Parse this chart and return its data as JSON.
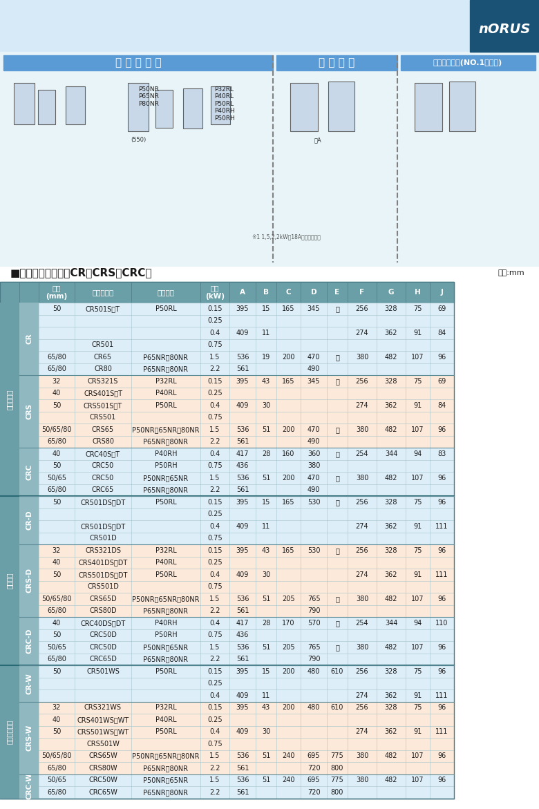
{
  "title_section": "■自動接続寸法表（CR・CRS・CRC）",
  "unit_text": "単位:mm",
  "header_row": [
    "",
    "口径\n(mm)",
    "ポンプ型式",
    "接続型式",
    "出力\n(kW)",
    "A",
    "B",
    "C",
    "D",
    "E",
    "F",
    "G",
    "H",
    "J"
  ],
  "norus_text": "nORUS",
  "bg_header_color": "#6b9fa8",
  "bg_light_blue": "#dceef5",
  "bg_light_orange": "#fde9d9",
  "bg_white": "#ffffff",
  "bg_section_header": "#8fb8c0",
  "table_data": [
    [
      "非自動運転",
      "CR",
      "50",
      "CR501S／T",
      "P50RL",
      "0.15",
      "395",
      "15",
      "165",
      "345",
      "－",
      "256",
      "328",
      "75",
      "69"
    ],
    [
      "非自動運転",
      "CR",
      "50",
      "CR501S／T",
      "P50RL",
      "0.25",
      "",
      "15",
      "165",
      "345",
      "－",
      "",
      "",
      "",
      ""
    ],
    [
      "非自動運転",
      "CR",
      "50",
      "CR501S／T",
      "P50RL",
      "0.4",
      "409",
      "11",
      "165",
      "345",
      "－",
      "274",
      "362",
      "91",
      "84"
    ],
    [
      "非自動運転",
      "CR",
      "50",
      "CR501",
      "",
      "0.75",
      "",
      "11",
      "165",
      "345",
      "－",
      "",
      "",
      "",
      ""
    ],
    [
      "非自動運転",
      "CR",
      "65/80",
      "CR65",
      "P65NR／80NR",
      "1.5",
      "536",
      "19",
      "200",
      "470",
      "－",
      "380",
      "482",
      "107",
      "96"
    ],
    [
      "非自動運転",
      "CR",
      "65/80",
      "CR80",
      "P65NR／80NR",
      "2.2",
      "561",
      "19",
      "200",
      "490",
      "－",
      "380",
      "482",
      "107",
      "96"
    ],
    [
      "非自動運転",
      "CRS",
      "32",
      "CRS321S",
      "P32RL",
      "0.15",
      "395",
      "43",
      "165",
      "345",
      "－",
      "256",
      "328",
      "75",
      "69"
    ],
    [
      "非自動運転",
      "CRS",
      "40",
      "CRS401S／T",
      "P40RL",
      "0.25",
      "",
      "43",
      "165",
      "345",
      "－",
      "",
      "",
      "",
      ""
    ],
    [
      "非自動運転",
      "CRS",
      "50",
      "CRS501S／T",
      "P50RL",
      "0.4",
      "409",
      "30",
      "165",
      "345",
      "－",
      "274",
      "362",
      "91",
      "84"
    ],
    [
      "非自動運転",
      "CRS",
      "50",
      "CRS501",
      "",
      "0.75",
      "",
      "30",
      "165",
      "345",
      "－",
      "",
      "",
      "",
      ""
    ],
    [
      "非自動運転",
      "CRS",
      "50/65/80",
      "CRS65",
      "P50NR／65NR／80NR",
      "1.5",
      "536",
      "51",
      "200",
      "470",
      "－",
      "380",
      "482",
      "107",
      "96"
    ],
    [
      "非自動運転",
      "CRS",
      "65/80",
      "CRS80",
      "P65NR／80NR",
      "2.2",
      "561",
      "51",
      "200",
      "490",
      "－",
      "380",
      "482",
      "107",
      "96"
    ],
    [
      "非自動運転",
      "CRC",
      "40",
      "CRC40S／T",
      "P40RH",
      "0.4",
      "417",
      "28",
      "160",
      "360",
      "－",
      "254",
      "344",
      "94",
      "83"
    ],
    [
      "非自動運転",
      "CRC",
      "50",
      "CRC50",
      "P50RH",
      "0.75",
      "436",
      "28",
      "160",
      "380",
      "－",
      "254",
      "344",
      "94",
      "83"
    ],
    [
      "非自動運転",
      "CRC",
      "50/65",
      "CRC50",
      "P50NR／65NR",
      "1.5",
      "536",
      "51",
      "200",
      "470",
      "－",
      "380",
      "482",
      "107",
      "96"
    ],
    [
      "非自動運転",
      "CRC",
      "65/80",
      "CRC65",
      "P65NR／80NR",
      "2.2",
      "561",
      "51",
      "200",
      "490",
      "－",
      "380",
      "482",
      "107",
      "96"
    ],
    [
      "自動運転",
      "CR-D",
      "50",
      "CR501DS／DT",
      "P50RL",
      "0.15",
      "395",
      "15",
      "165",
      "530",
      "－",
      "256",
      "328",
      "75",
      "96"
    ],
    [
      "自動運転",
      "CR-D",
      "50",
      "CR501DS／DT",
      "P50RL",
      "0.25",
      "",
      "15",
      "165",
      "530",
      "－",
      "",
      "",
      "",
      ""
    ],
    [
      "自動運転",
      "CR-D",
      "50",
      "CR501DS／DT",
      "P50RL",
      "0.4",
      "409",
      "11",
      "165",
      "530",
      "－",
      "274",
      "362",
      "91",
      "111"
    ],
    [
      "自動運転",
      "CR-D",
      "50",
      "CR501D",
      "",
      "0.75",
      "",
      "11",
      "165",
      "530",
      "－",
      "",
      "",
      "",
      ""
    ],
    [
      "自動運転",
      "CRS-D",
      "32",
      "CRS321DS",
      "P32RL",
      "0.15",
      "395",
      "43",
      "165",
      "530",
      "－",
      "256",
      "328",
      "75",
      "96"
    ],
    [
      "自動運転",
      "CRS-D",
      "40",
      "CRS401DS／DT",
      "P40RL",
      "0.25",
      "",
      "43",
      "165",
      "530",
      "－",
      "",
      "",
      "",
      ""
    ],
    [
      "自動運転",
      "CRS-D",
      "50",
      "CRS501DS／DT",
      "P50RL",
      "0.4",
      "409",
      "30",
      "165",
      "530",
      "－",
      "274",
      "362",
      "91",
      "111"
    ],
    [
      "自動運転",
      "CRS-D",
      "50",
      "CRS501D",
      "",
      "0.75",
      "",
      "30",
      "165",
      "530",
      "－",
      "",
      "",
      "",
      ""
    ],
    [
      "自動運転",
      "CRS-D",
      "50/65/80",
      "CRS65D",
      "P50NR／65NR／80NR",
      "1.5",
      "536",
      "51",
      "205",
      "765",
      "－",
      "380",
      "482",
      "107",
      "96"
    ],
    [
      "自動運転",
      "CRS-D",
      "65/80",
      "CRS80D",
      "P65NR／80NR",
      "2.2",
      "561",
      "51",
      "205",
      "790",
      "－",
      "380",
      "482",
      "107",
      "96"
    ],
    [
      "自動運転",
      "CRC-D",
      "40",
      "CRC40DS／DT",
      "P40RH",
      "0.4",
      "417",
      "28",
      "170",
      "570",
      "－",
      "254",
      "344",
      "94",
      "110"
    ],
    [
      "自動運転",
      "CRC-D",
      "50",
      "CRC50D",
      "P50RH",
      "0.75",
      "436",
      "28",
      "170",
      "570",
      "－",
      "254",
      "344",
      "94",
      "110"
    ],
    [
      "自動運転",
      "CRC-D",
      "50/65",
      "CRC50D",
      "P50NR／65NR",
      "1.5",
      "536",
      "51",
      "205",
      "765",
      "－",
      "380",
      "482",
      "107",
      "96"
    ],
    [
      "自動運転",
      "CRC-D",
      "65/80",
      "CRC65D",
      "P65NR／80NR",
      "2.2",
      "561",
      "51",
      "205",
      "790",
      "－",
      "380",
      "482",
      "107",
      "96"
    ],
    [
      "自動交互運転",
      "CR-W",
      "50",
      "CR501WS",
      "P50RL",
      "0.15",
      "395",
      "15",
      "200",
      "480",
      "610",
      "256",
      "328",
      "75",
      "96"
    ],
    [
      "自動交互運転",
      "CR-W",
      "50",
      "CR501WS",
      "P50RL",
      "0.25",
      "",
      "15",
      "200",
      "480",
      "610",
      "",
      "",
      "",
      ""
    ],
    [
      "自動交互運転",
      "CR-W",
      "50",
      "CR501WS",
      "P50RL",
      "0.4",
      "409",
      "11",
      "200",
      "480",
      "610",
      "274",
      "362",
      "91",
      "111"
    ],
    [
      "自動交互運転",
      "CRS-W",
      "32",
      "CRS321WS",
      "P32RL",
      "0.15",
      "395",
      "43",
      "200",
      "480",
      "610",
      "256",
      "328",
      "75",
      "96"
    ],
    [
      "自動交互運転",
      "CRS-W",
      "40",
      "CRS401WS／WT",
      "P40RL",
      "0.25",
      "",
      "43",
      "200",
      "480",
      "610",
      "",
      "",
      "",
      ""
    ],
    [
      "自動交互運転",
      "CRS-W",
      "50",
      "CRS501WS／WT",
      "P50RL",
      "0.4",
      "409",
      "30",
      "200",
      "480",
      "610",
      "274",
      "362",
      "91",
      "111"
    ],
    [
      "自動交互運転",
      "CRS-W",
      "50",
      "CRS501W",
      "",
      "0.75",
      "",
      "30",
      "200",
      "480",
      "610",
      "",
      "",
      "",
      ""
    ],
    [
      "自動交互運転",
      "CRS-W",
      "50/65/80",
      "CRS65W",
      "P50NR／65NR／80NR",
      "1.5",
      "536",
      "51",
      "240",
      "695",
      "775",
      "380",
      "482",
      "107",
      "96"
    ],
    [
      "自動交互運転",
      "CRS-W",
      "65/80",
      "CRS80W",
      "P65NR／80NR",
      "2.2",
      "561",
      "51",
      "240",
      "720",
      "800",
      "380",
      "482",
      "107",
      "96"
    ],
    [
      "自動交互運転",
      "CRC-W",
      "50/65",
      "CRC50W",
      "P50NR／65NR",
      "1.5",
      "536",
      "51",
      "240",
      "695",
      "775",
      "380",
      "482",
      "107",
      "96"
    ],
    [
      "自動交互運転",
      "CRC-W",
      "65/80",
      "CRC65W",
      "P65NR／80NR",
      "2.2",
      "561",
      "51",
      "240",
      "720",
      "800",
      "380",
      "482",
      "107",
      "96"
    ]
  ]
}
